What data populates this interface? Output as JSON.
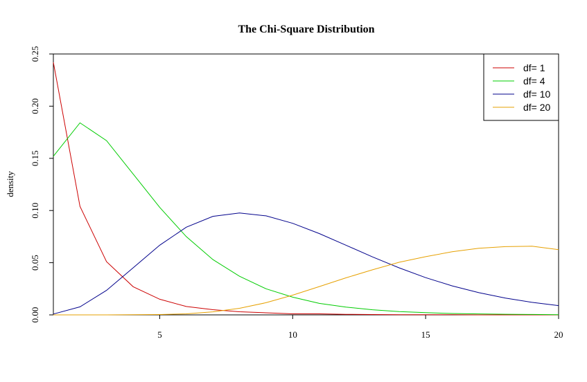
{
  "chart_data": {
    "type": "line",
    "title": "The Chi-Square Distribution",
    "xlabel": "",
    "ylabel": "density",
    "xlim": [
      1,
      20
    ],
    "ylim": [
      0,
      0.25
    ],
    "x_ticks": [
      5,
      10,
      15,
      20
    ],
    "x_tick_labels": [
      "5",
      "10",
      "15",
      "20"
    ],
    "y_ticks": [
      0,
      0.05,
      0.1,
      0.15,
      0.2,
      0.25
    ],
    "y_tick_labels": [
      "0.00",
      "0.05",
      "0.10",
      "0.15",
      "0.20",
      "0.25"
    ],
    "grid": false,
    "legend": {
      "position": "top-right"
    },
    "x": [
      1,
      2,
      3,
      4,
      5,
      6,
      7,
      8,
      9,
      10,
      11,
      12,
      13,
      14,
      15,
      16,
      17,
      18,
      19,
      20
    ],
    "series": [
      {
        "name": "df= 1",
        "color": "#cc0000",
        "values": [
          0.242,
          0.104,
          0.051,
          0.027,
          0.015,
          0.008,
          0.005,
          0.003,
          0.002,
          0.001,
          0.001,
          0.0005,
          0.0003,
          0.0002,
          0.0001,
          0.0001,
          0.0,
          0.0,
          0.0,
          0.0
        ]
      },
      {
        "name": "df= 4",
        "color": "#00cc00",
        "values": [
          0.152,
          0.184,
          0.167,
          0.135,
          0.103,
          0.075,
          0.053,
          0.037,
          0.025,
          0.017,
          0.011,
          0.0074,
          0.0049,
          0.0032,
          0.0021,
          0.0013,
          0.0009,
          0.0006,
          0.0004,
          0.0002
        ]
      },
      {
        "name": "df= 10",
        "color": "#00008b",
        "values": [
          0.0008,
          0.0077,
          0.0235,
          0.0451,
          0.0668,
          0.084,
          0.0944,
          0.0977,
          0.0949,
          0.0877,
          0.0779,
          0.0668,
          0.0556,
          0.0451,
          0.0357,
          0.0278,
          0.0213,
          0.0161,
          0.012,
          0.0089
        ]
      },
      {
        "name": "df= 20",
        "color": "#e6a000",
        "values": [
          0.0,
          0.0,
          0.0,
          0.0001,
          0.0003,
          0.001,
          0.0029,
          0.0063,
          0.0117,
          0.0189,
          0.0271,
          0.0355,
          0.0432,
          0.0504,
          0.0558,
          0.0605,
          0.0638,
          0.0654,
          0.0658,
          0.0625
        ]
      }
    ]
  }
}
